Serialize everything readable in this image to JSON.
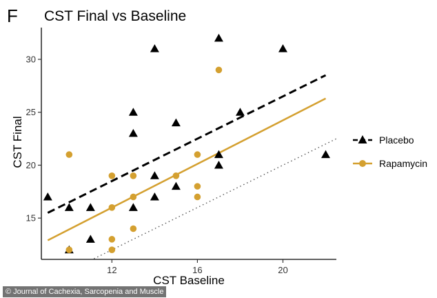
{
  "panel_letter": "F",
  "credit": "© Journal of Cachexia, Sarcopenia and Muscle",
  "colors": {
    "placebo": "#000000",
    "rapamycin": "#D4A030",
    "axis": "#000000",
    "identity": "#555555"
  },
  "chart_data": {
    "type": "scatter",
    "title": "CST Final vs Baseline",
    "xlabel": "CST Baseline",
    "ylabel": "CST Final",
    "xlim": [
      8.7,
      22.5
    ],
    "ylim": [
      11.1,
      33.0
    ],
    "xticks": [
      12,
      16,
      20
    ],
    "yticks": [
      15,
      20,
      25,
      30
    ],
    "grid": false,
    "legend_position": "right",
    "series": [
      {
        "name": "Placebo",
        "marker": "triangle",
        "color": "#000000",
        "line_style": "dashed",
        "fit": {
          "x": [
            9,
            22
          ],
          "y": [
            15.5,
            28.5
          ]
        },
        "points": [
          {
            "x": 9,
            "y": 17
          },
          {
            "x": 10,
            "y": 16
          },
          {
            "x": 10,
            "y": 12
          },
          {
            "x": 11,
            "y": 16
          },
          {
            "x": 11,
            "y": 13
          },
          {
            "x": 13,
            "y": 25
          },
          {
            "x": 13,
            "y": 23
          },
          {
            "x": 13,
            "y": 16
          },
          {
            "x": 14,
            "y": 31
          },
          {
            "x": 14,
            "y": 19
          },
          {
            "x": 14,
            "y": 17
          },
          {
            "x": 15,
            "y": 24
          },
          {
            "x": 15,
            "y": 18
          },
          {
            "x": 17,
            "y": 32
          },
          {
            "x": 17,
            "y": 21
          },
          {
            "x": 17,
            "y": 20
          },
          {
            "x": 18,
            "y": 25
          },
          {
            "x": 20,
            "y": 31
          },
          {
            "x": 22,
            "y": 21
          }
        ]
      },
      {
        "name": "Rapamycin",
        "marker": "circle",
        "color": "#D4A030",
        "line_style": "solid",
        "fit": {
          "x": [
            9,
            22
          ],
          "y": [
            12.9,
            26.3
          ]
        },
        "points": [
          {
            "x": 10,
            "y": 21
          },
          {
            "x": 10,
            "y": 12
          },
          {
            "x": 12,
            "y": 19
          },
          {
            "x": 12,
            "y": 16
          },
          {
            "x": 12,
            "y": 13
          },
          {
            "x": 12,
            "y": 12
          },
          {
            "x": 13,
            "y": 19
          },
          {
            "x": 13,
            "y": 17
          },
          {
            "x": 13,
            "y": 14
          },
          {
            "x": 15,
            "y": 19
          },
          {
            "x": 16,
            "y": 21
          },
          {
            "x": 16,
            "y": 18
          },
          {
            "x": 16,
            "y": 17
          },
          {
            "x": 17,
            "y": 29
          }
        ]
      }
    ],
    "reference_line": {
      "type": "identity",
      "style": "dotted",
      "x": [
        11,
        22.5
      ],
      "y": [
        11,
        22.5
      ]
    }
  }
}
